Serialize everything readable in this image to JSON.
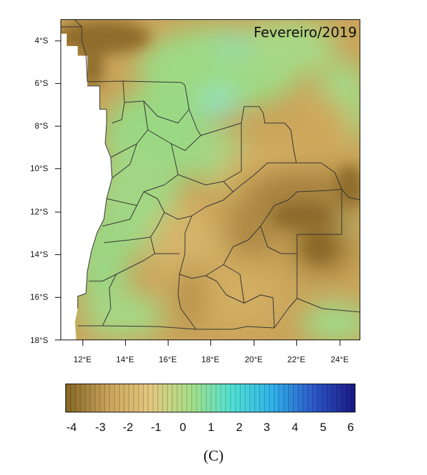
{
  "map": {
    "title": "Fevereiro/2019",
    "y_ticks": [
      "4°S",
      "6°S",
      "8°S",
      "10°S",
      "12°S",
      "14°S",
      "16°S",
      "18°S"
    ],
    "x_ticks": [
      "12°E",
      "14°E",
      "16°E",
      "18°E",
      "20°E",
      "22°E",
      "24°E"
    ],
    "lon_range": [
      11,
      25
    ],
    "lat_range": [
      -3.1,
      -18
    ],
    "ocean_color": "#ffffff",
    "base_color": "#c9a45a",
    "border_color": "#333333"
  },
  "colorbar": {
    "labels": [
      "-4",
      "-3",
      "-2",
      "-1",
      "0",
      "1",
      "2",
      "3",
      "4",
      "5",
      "6"
    ],
    "range": [
      -4.5,
      6.2
    ],
    "stops": [
      "#8a6a28",
      "#c9a45a",
      "#e3c77e",
      "#a6df86",
      "#4fe0d2",
      "#2fb1e8",
      "#2d58c8",
      "#1a1a86"
    ]
  },
  "caption": "(C)"
}
